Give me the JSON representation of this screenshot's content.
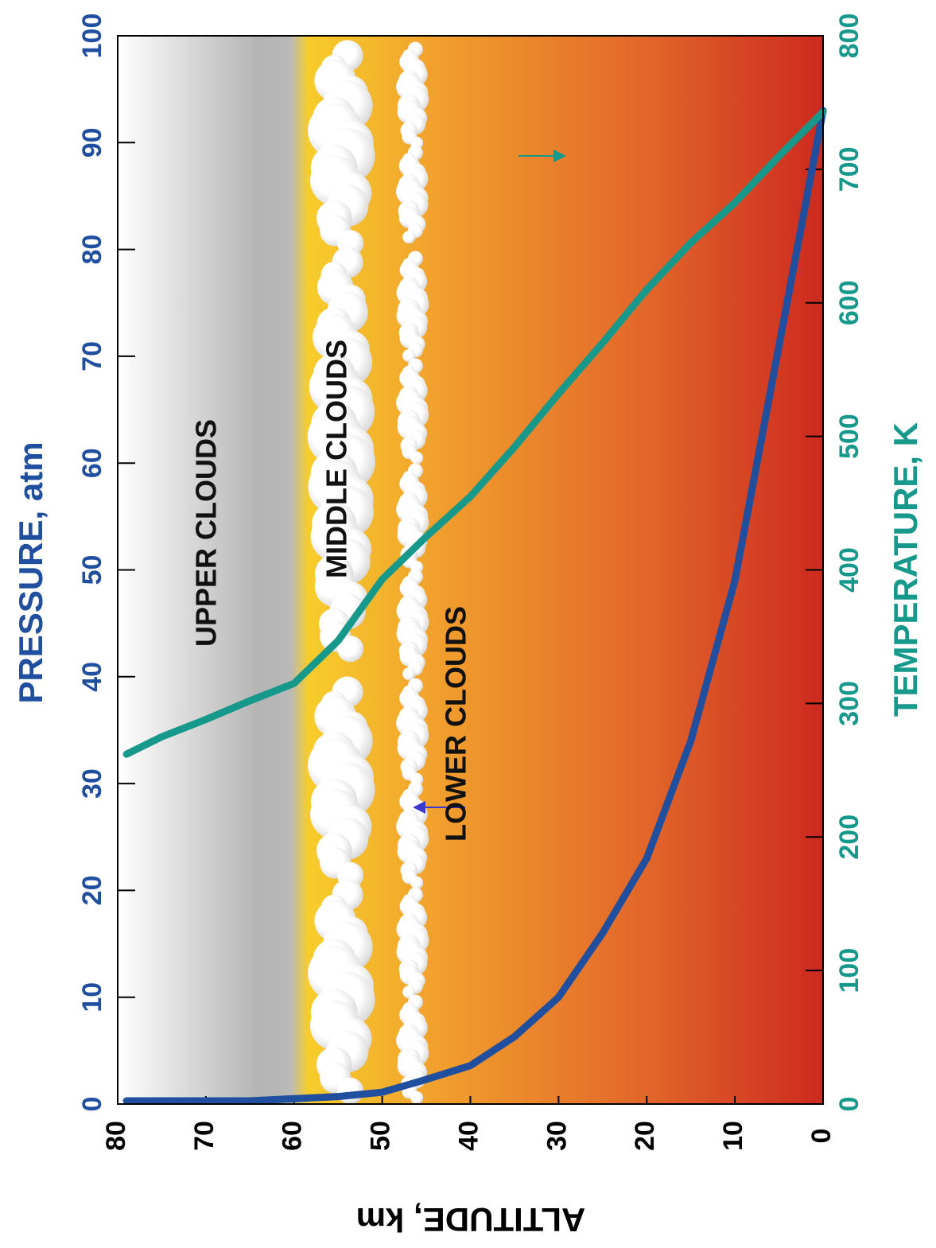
{
  "chart_data": {
    "type": "line",
    "x_label": "ALTITUDE, km",
    "y_label": "PRESSURE, atm",
    "y2_label": "TEMPERATURE, K",
    "x": [
      0,
      5,
      10,
      15,
      20,
      25,
      30,
      35,
      40,
      45,
      50,
      55,
      60,
      65,
      70,
      75,
      79
    ],
    "xlim": [
      80,
      0
    ],
    "xticks": [
      80,
      70,
      60,
      50,
      40,
      30,
      20,
      10,
      0
    ],
    "ylim": [
      0,
      100
    ],
    "yticks": [
      0,
      10,
      20,
      30,
      40,
      50,
      60,
      70,
      80,
      90,
      100
    ],
    "y2lim": [
      0,
      800
    ],
    "y2ticks": [
      0,
      100,
      200,
      300,
      400,
      500,
      600,
      700,
      800
    ],
    "series": [
      {
        "name": "PRESSURE, atm",
        "color": "#1f4f9e",
        "values": [
          93,
          71,
          49,
          34,
          23,
          16,
          10,
          6.3,
          3.6,
          2.3,
          1.1,
          0.7,
          0.5,
          0.3,
          0.3,
          0.3,
          0.3
        ]
      },
      {
        "name": "TEMPERATURE, K",
        "color": "#16998a",
        "axis": "y2",
        "values": [
          743,
          710,
          675,
          645,
          610,
          570,
          532,
          492,
          455,
          425,
          393,
          347,
          315,
          302,
          288,
          275,
          262
        ]
      }
    ],
    "annotations": [
      "UPPER CLOUDS",
      "MIDDLE CLOUDS",
      "LOWER CLOUDS"
    ]
  }
}
